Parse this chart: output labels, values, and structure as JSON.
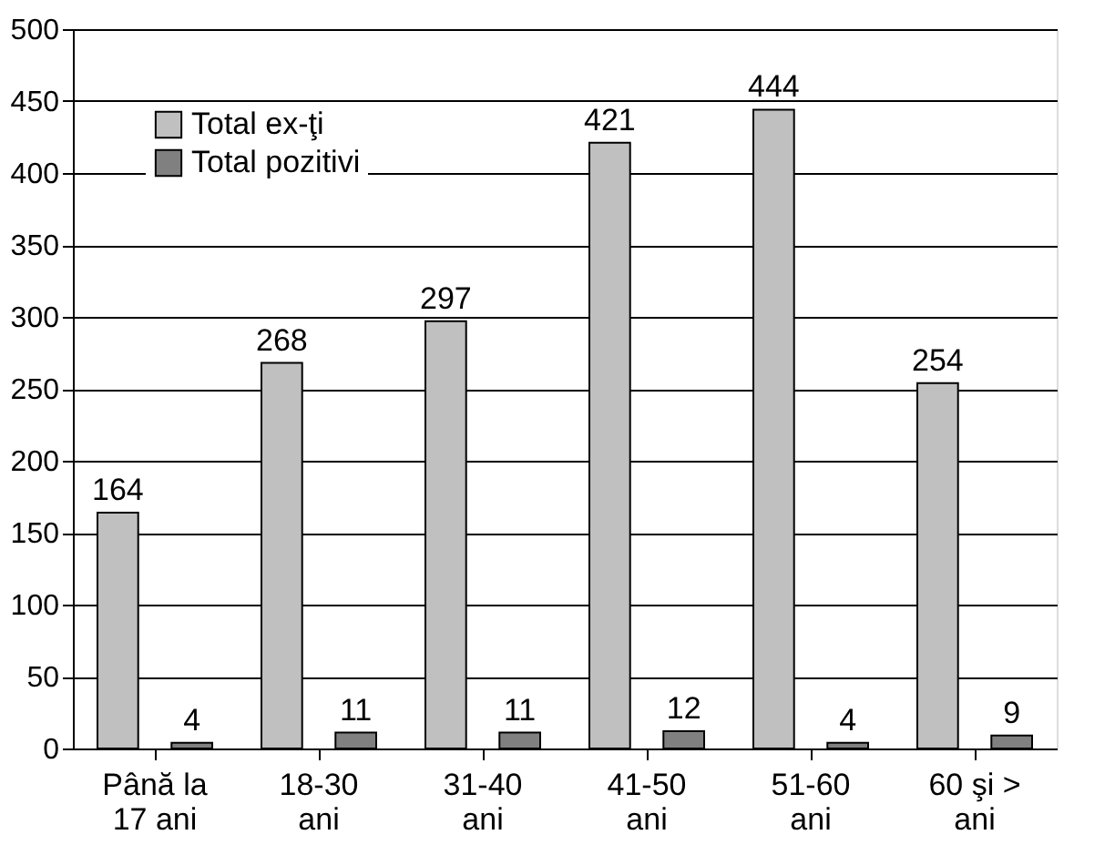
{
  "chart_data": {
    "type": "bar",
    "categories": [
      "Până la\n17 ani",
      "18-30\nani",
      "31-40\nani",
      "41-50\nani",
      "51-60\nani",
      "60 şi >\nani"
    ],
    "series": [
      {
        "name": "Total ex-ţi",
        "color": "#c0c0c0",
        "values": [
          164,
          268,
          297,
          421,
          444,
          254
        ]
      },
      {
        "name": "Total pozitivi",
        "color": "#808080",
        "values": [
          4,
          11,
          11,
          12,
          4,
          9
        ]
      }
    ],
    "ylim": [
      0,
      500
    ],
    "yticks": [
      0,
      50,
      100,
      150,
      200,
      250,
      300,
      350,
      400,
      450,
      500
    ],
    "grid": "y",
    "legend": "top left",
    "data_labels": true
  }
}
